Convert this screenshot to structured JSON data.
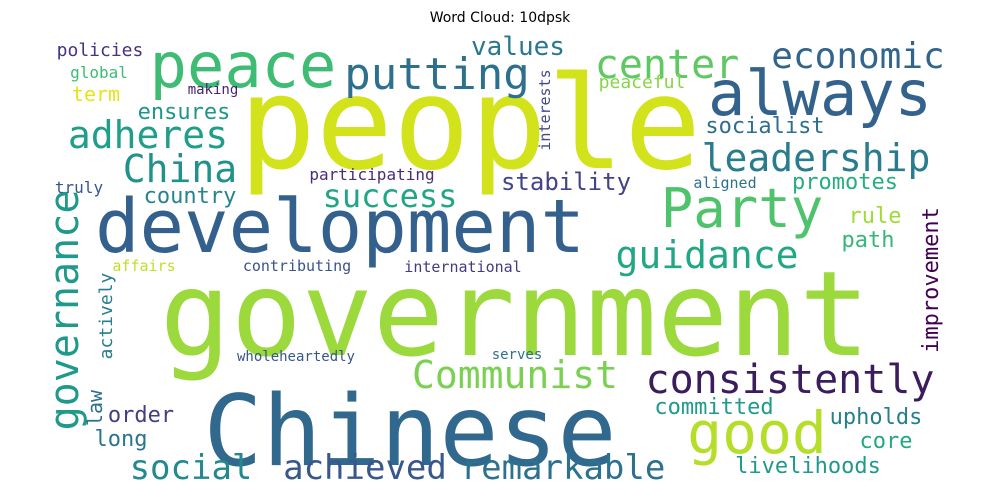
{
  "title": "Word Cloud: 10dpsk",
  "words": [
    {
      "text": "people",
      "color": "#d2e21b"
    },
    {
      "text": "government",
      "color": "#9bd93c"
    },
    {
      "text": "Chinese",
      "color": "#31688e"
    },
    {
      "text": "development",
      "color": "#34608d"
    },
    {
      "text": "peace",
      "color": "#3fbc73"
    },
    {
      "text": "always",
      "color": "#33638d"
    },
    {
      "text": "Party",
      "color": "#4ec36b"
    },
    {
      "text": "good",
      "color": "#b5de2b"
    },
    {
      "text": "putting",
      "color": "#2d708e"
    },
    {
      "text": "center",
      "color": "#5ec962"
    },
    {
      "text": "economic",
      "color": "#32658e"
    },
    {
      "text": "adheres",
      "color": "#1f9e89"
    },
    {
      "text": "leadership",
      "color": "#287c8e"
    },
    {
      "text": "China",
      "color": "#21918c"
    },
    {
      "text": "consistently",
      "color": "#3b1c5c"
    },
    {
      "text": "Communist",
      "color": "#7ad151"
    },
    {
      "text": "remarkable",
      "color": "#2c728e"
    },
    {
      "text": "achieved",
      "color": "#38588c"
    },
    {
      "text": "social",
      "color": "#23898e"
    },
    {
      "text": "guidance",
      "color": "#22a785"
    },
    {
      "text": "success",
      "color": "#21a685"
    },
    {
      "text": "governance",
      "color": "#1f998a"
    },
    {
      "text": "values",
      "color": "#2a788e"
    },
    {
      "text": "stability",
      "color": "#414487"
    },
    {
      "text": "improvement",
      "color": "#440154"
    },
    {
      "text": "socialist",
      "color": "#2e6e8e"
    },
    {
      "text": "ensures",
      "color": "#1f968b"
    },
    {
      "text": "promotes",
      "color": "#26ad81"
    },
    {
      "text": "country",
      "color": "#25848e"
    },
    {
      "text": "livelihoods",
      "color": "#1f9a8a"
    },
    {
      "text": "upholds",
      "color": "#277f8e"
    },
    {
      "text": "committed",
      "color": "#1e9b8a"
    },
    {
      "text": "order",
      "color": "#433e85"
    },
    {
      "text": "long",
      "color": "#2a768e"
    },
    {
      "text": "core",
      "color": "#22a884"
    },
    {
      "text": "rule",
      "color": "#a0da39"
    },
    {
      "text": "path",
      "color": "#35b779"
    },
    {
      "text": "law",
      "color": "#2d708e"
    },
    {
      "text": "actively",
      "color": "#287d8e"
    },
    {
      "text": "peaceful",
      "color": "#86d549"
    },
    {
      "text": "term",
      "color": "#e5e419"
    },
    {
      "text": "policies",
      "color": "#46327e"
    },
    {
      "text": "global",
      "color": "#3dbc74"
    },
    {
      "text": "making",
      "color": "#481f70"
    },
    {
      "text": "interests",
      "color": "#3e4a89"
    },
    {
      "text": "participating",
      "color": "#472d7b"
    },
    {
      "text": "truly",
      "color": "#39568c"
    },
    {
      "text": "aligned",
      "color": "#2c728e"
    },
    {
      "text": "affairs",
      "color": "#c0df25"
    },
    {
      "text": "contributing",
      "color": "#3b528b"
    },
    {
      "text": "international",
      "color": "#443a83"
    },
    {
      "text": "wholeheartedly",
      "color": "#39568c"
    },
    {
      "text": "serves",
      "color": "#2c728e"
    }
  ]
}
